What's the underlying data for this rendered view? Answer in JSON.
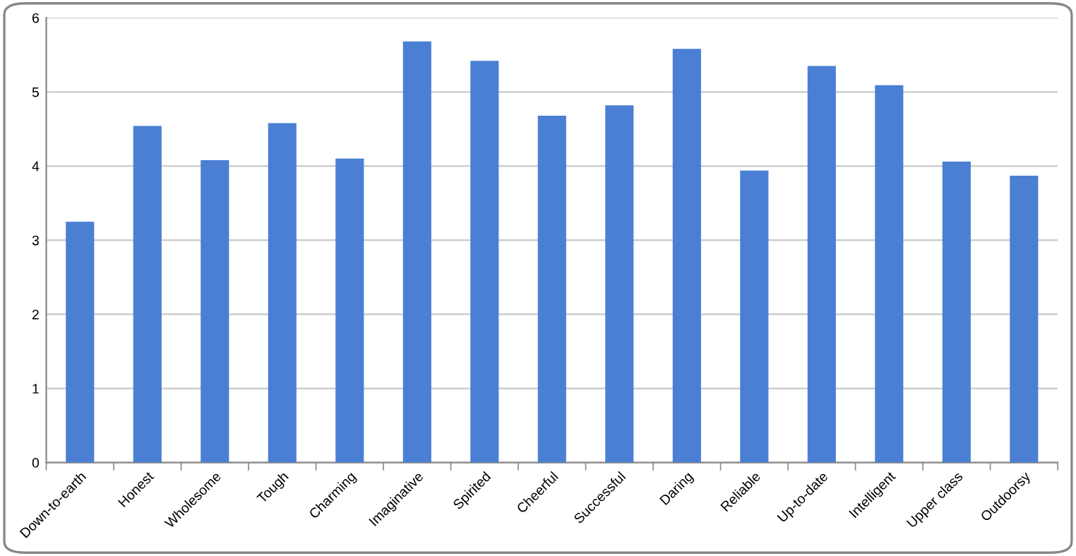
{
  "chart_data": {
    "type": "bar",
    "categories": [
      "Down-to-earth",
      "Honest",
      "Wholesome",
      "Tough",
      "Charming",
      "Imaginative",
      "Spirited",
      "Cheerful",
      "Successful",
      "Daring",
      "Reliable",
      "Up-to-date",
      "Intelligent",
      "Upper class",
      "Outdoorsy"
    ],
    "values": [
      3.25,
      4.54,
      4.08,
      4.58,
      4.1,
      5.68,
      5.42,
      4.68,
      4.82,
      5.58,
      3.94,
      5.35,
      5.09,
      4.06,
      3.87
    ],
    "color": "#4a7fd4",
    "ylim": [
      0,
      6
    ],
    "yticks": [
      0,
      1,
      2,
      3,
      4,
      5,
      6
    ],
    "grid": "y",
    "legend": false
  }
}
